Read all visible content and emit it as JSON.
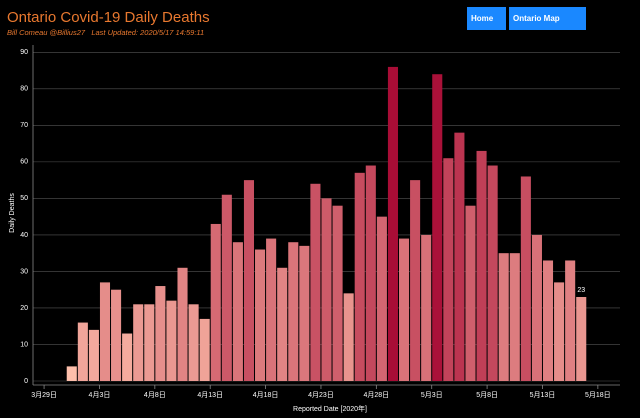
{
  "buttons": [
    "Home",
    "Ontario Map"
  ],
  "chart_data": {
    "type": "bar",
    "title": "Ontario Covid-19 Daily Deaths",
    "subtitle": "Bill Comeau @Billius27   Last Updated: 2020/5/17 14:59:11",
    "x_label": "Reported Date [2020年]",
    "y_label": "Daily Deaths",
    "x": [
      "4月1日",
      "4月2日",
      "4月3日",
      "4月4日",
      "4月5日",
      "4月6日",
      "4月7日",
      "4月8日",
      "4月9日",
      "4月10日",
      "4月11日",
      "4月12日",
      "4月13日",
      "4月14日",
      "4月15日",
      "4月16日",
      "4月17日",
      "4月18日",
      "4月19日",
      "4月20日",
      "4月21日",
      "4月22日",
      "4月23日",
      "4月24日",
      "4月25日",
      "4月26日",
      "4月27日",
      "4月28日",
      "4月29日",
      "4月30日",
      "5月1日",
      "5月2日",
      "5月3日",
      "5月4日",
      "5月5日",
      "5月6日",
      "5月7日",
      "5月8日",
      "5月9日",
      "5月10日",
      "5月11日",
      "5月12日",
      "5月13日",
      "5月14日",
      "5月15日",
      "5月16日",
      "5月17日"
    ],
    "values": [
      4,
      16,
      14,
      27,
      25,
      13,
      21,
      21,
      26,
      22,
      31,
      21,
      17,
      43,
      51,
      38,
      55,
      36,
      39,
      31,
      38,
      37,
      54,
      50,
      48,
      24,
      57,
      59,
      45,
      86,
      39,
      55,
      40,
      84,
      61,
      68,
      48,
      63,
      59,
      35,
      35,
      56,
      40,
      33,
      27,
      33,
      23
    ],
    "color_range": [
      "#fdbfab",
      "#a80d36"
    ],
    "xlim": [
      "3月28日",
      "5月20日"
    ],
    "xticks": [
      "3月29日",
      "4月3日",
      "4月8日",
      "4月13日",
      "4月18日",
      "4月23日",
      "4月28日",
      "5月3日",
      "5月8日",
      "5月13日",
      "5月18日"
    ],
    "ylim": [
      0,
      92
    ],
    "yticks": [
      0,
      10,
      20,
      30,
      40,
      50,
      60,
      70,
      80,
      90
    ],
    "grid": true
  }
}
